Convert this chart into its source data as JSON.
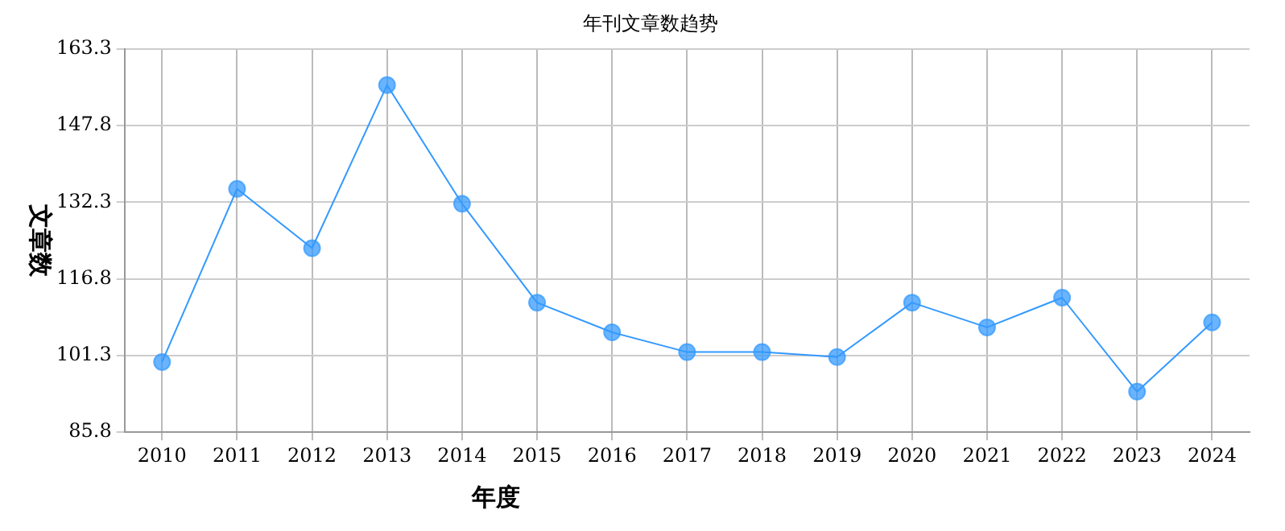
{
  "chart_data": {
    "type": "line",
    "title": "年刊文章数趋势",
    "xlabel": "年度",
    "ylabel": "文章数",
    "categories": [
      "2010",
      "2011",
      "2012",
      "2013",
      "2014",
      "2015",
      "2016",
      "2017",
      "2018",
      "2019",
      "2020",
      "2021",
      "2022",
      "2023",
      "2024"
    ],
    "series": [
      {
        "color": "#3399ff",
        "values": [
          100,
          135,
          123,
          156,
          132,
          112,
          106,
          102,
          102,
          101,
          112,
          107,
          113,
          94,
          108
        ]
      }
    ],
    "ylim": [
      85.8,
      163.3
    ],
    "yticks": [
      85.8,
      101.3,
      116.8,
      132.3,
      147.8,
      163.3
    ],
    "grid": true,
    "marker": "circle",
    "line_style": "solid",
    "legend": false
  }
}
